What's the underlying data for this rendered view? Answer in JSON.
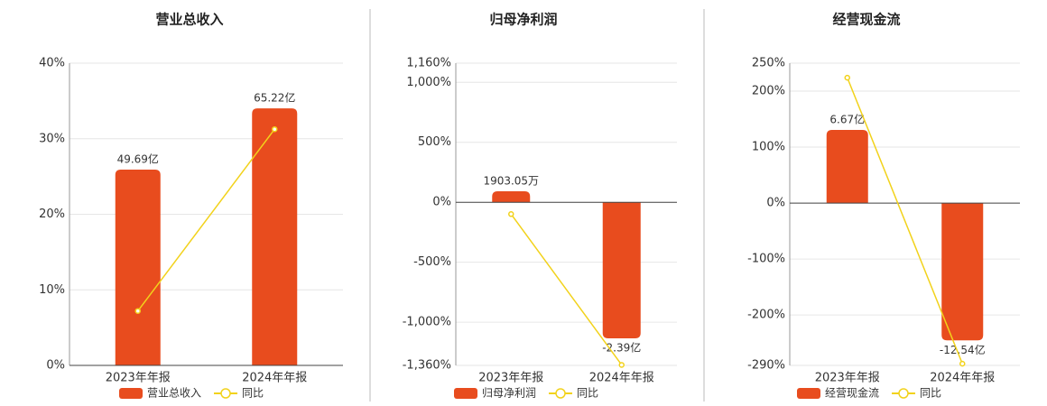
{
  "chart_data": [
    {
      "type": "bar",
      "title": "营业总收入",
      "categories": [
        "2023年年报",
        "2024年年报"
      ],
      "ylim": [
        0,
        40
      ],
      "yticks": [
        {
          "value": 0,
          "label": "0%"
        },
        {
          "value": 10,
          "label": "10%"
        },
        {
          "value": 20,
          "label": "20%"
        },
        {
          "value": 30,
          "label": "30%"
        },
        {
          "value": 40,
          "label": "40%"
        }
      ],
      "y2lim": [
        0,
        7670000000
      ],
      "grid": true,
      "series": [
        {
          "name": "营业总收入",
          "color": "#e84c1e",
          "axis": "y2",
          "values": [
            4969000000,
            6522000000
          ],
          "value_labels": [
            "49.69亿",
            "65.22亿"
          ]
        },
        {
          "name": "同比",
          "color": "#f2d21b",
          "values": [
            7.2,
            31.26
          ]
        }
      ]
    },
    {
      "type": "bar",
      "title": "归母净利润",
      "categories": [
        "2023年年报",
        "2024年年报"
      ],
      "ylim": [
        -1360,
        1160
      ],
      "yticks": [
        {
          "value": -1360,
          "label": "-1,360%"
        },
        {
          "value": -1000,
          "label": "-1,000%"
        },
        {
          "value": -500,
          "label": "-500%"
        },
        {
          "value": 0,
          "label": "0%"
        },
        {
          "value": 500,
          "label": "500%"
        },
        {
          "value": 1000,
          "label": "1,000%"
        },
        {
          "value": 1160,
          "label": "1,160%"
        }
      ],
      "y2lim": [
        -286500000,
        243700000
      ],
      "grid": true,
      "series": [
        {
          "name": "归母净利润",
          "color": "#e84c1e",
          "axis": "y2",
          "values": [
            19030500,
            -239000000
          ],
          "value_labels": [
            "1903.05万",
            "-2.39亿"
          ]
        },
        {
          "name": "同比",
          "color": "#f2d21b",
          "values": [
            -98.5,
            -1356
          ]
        }
      ]
    },
    {
      "type": "bar",
      "title": "经营现金流",
      "categories": [
        "2023年年报",
        "2024年年报"
      ],
      "ylim": [
        -290,
        250
      ],
      "yticks": [
        {
          "value": -290,
          "label": "-290%"
        },
        {
          "value": -200,
          "label": "-200%"
        },
        {
          "value": -100,
          "label": "-100%"
        },
        {
          "value": 0,
          "label": "0%"
        },
        {
          "value": 100,
          "label": "100%"
        },
        {
          "value": 200,
          "label": "200%"
        },
        {
          "value": 250,
          "label": "250%"
        }
      ],
      "y2lim": [
        -1482000000,
        1276000000
      ],
      "grid": true,
      "series": [
        {
          "name": "经营现金流",
          "color": "#e84c1e",
          "axis": "y2",
          "values": [
            667000000,
            -1254000000
          ],
          "value_labels": [
            "6.67亿",
            "-12.54亿"
          ]
        },
        {
          "name": "同比",
          "color": "#f2d21b",
          "values": [
            224,
            -287
          ]
        }
      ]
    }
  ]
}
